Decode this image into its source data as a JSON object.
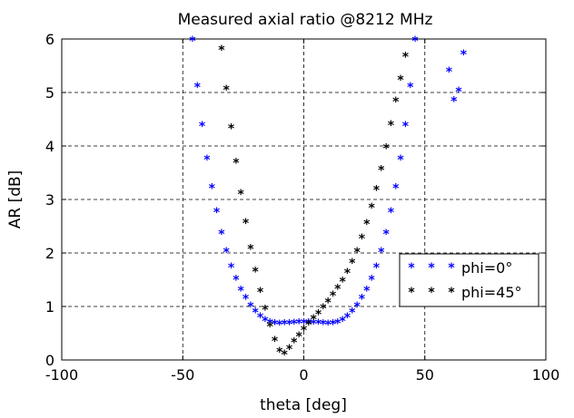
{
  "chart_data": {
    "type": "scatter",
    "title": "Measured axial ratio @8212 MHz",
    "xlabel": "theta [deg]",
    "ylabel": "AR [dB]",
    "xlim": [
      -100,
      100
    ],
    "ylim": [
      0,
      6
    ],
    "xticks": [
      "-100",
      "-50",
      "0",
      "50",
      "100"
    ],
    "yticks": [
      "0",
      "1",
      "2",
      "3",
      "4",
      "5",
      "6"
    ],
    "grid": true,
    "legend_position": "right",
    "series": [
      {
        "name": "phi=0°",
        "color": "#0000ff",
        "marker": "*",
        "points": [
          [
            -46,
            5.97
          ],
          [
            -44,
            5.1
          ],
          [
            -42,
            4.37
          ],
          [
            -40,
            3.75
          ],
          [
            -38,
            3.21
          ],
          [
            -36,
            2.76
          ],
          [
            -34,
            2.36
          ],
          [
            -32,
            2.02
          ],
          [
            -30,
            1.73
          ],
          [
            -28,
            1.5
          ],
          [
            -26,
            1.3
          ],
          [
            -24,
            1.14
          ],
          [
            -22,
            1.0
          ],
          [
            -20,
            0.89
          ],
          [
            -18,
            0.8
          ],
          [
            -16,
            0.73
          ],
          [
            -14,
            0.69
          ],
          [
            -12,
            0.67
          ],
          [
            -10,
            0.66
          ],
          [
            -8,
            0.67
          ],
          [
            -6,
            0.67
          ],
          [
            -4,
            0.68
          ],
          [
            -2,
            0.69
          ],
          [
            0,
            0.69
          ],
          [
            2,
            0.69
          ],
          [
            4,
            0.68
          ],
          [
            6,
            0.68
          ],
          [
            8,
            0.67
          ],
          [
            10,
            0.66
          ],
          [
            12,
            0.67
          ],
          [
            14,
            0.69
          ],
          [
            16,
            0.73
          ],
          [
            18,
            0.8
          ],
          [
            20,
            0.89
          ],
          [
            22,
            1.0
          ],
          [
            24,
            1.14
          ],
          [
            26,
            1.3
          ],
          [
            28,
            1.5
          ],
          [
            30,
            1.73
          ],
          [
            32,
            2.02
          ],
          [
            34,
            2.36
          ],
          [
            36,
            2.76
          ],
          [
            38,
            3.21
          ],
          [
            40,
            3.75
          ],
          [
            42,
            4.37
          ],
          [
            44,
            5.1
          ],
          [
            46,
            5.97
          ],
          [
            60,
            5.39
          ],
          [
            62,
            4.84
          ],
          [
            64,
            5.02
          ],
          [
            66,
            5.71
          ]
        ]
      },
      {
        "name": "phi=45°",
        "color": "#000000",
        "marker": "*",
        "points": [
          [
            -34,
            5.8
          ],
          [
            -32,
            5.05
          ],
          [
            -30,
            4.33
          ],
          [
            -28,
            3.69
          ],
          [
            -26,
            3.1
          ],
          [
            -24,
            2.56
          ],
          [
            -22,
            2.08
          ],
          [
            -20,
            1.65
          ],
          [
            -18,
            1.27
          ],
          [
            -16,
            0.94
          ],
          [
            -14,
            0.63
          ],
          [
            -12,
            0.36
          ],
          [
            -10,
            0.15
          ],
          [
            -8,
            0.1
          ],
          [
            -6,
            0.2
          ],
          [
            -4,
            0.33
          ],
          [
            -2,
            0.44
          ],
          [
            0,
            0.56
          ],
          [
            2,
            0.66
          ],
          [
            4,
            0.76
          ],
          [
            6,
            0.86
          ],
          [
            8,
            0.97
          ],
          [
            10,
            1.08
          ],
          [
            12,
            1.2
          ],
          [
            14,
            1.33
          ],
          [
            16,
            1.47
          ],
          [
            18,
            1.63
          ],
          [
            20,
            1.81
          ],
          [
            22,
            2.02
          ],
          [
            24,
            2.27
          ],
          [
            26,
            2.54
          ],
          [
            28,
            2.85
          ],
          [
            30,
            3.18
          ],
          [
            32,
            3.55
          ],
          [
            34,
            3.96
          ],
          [
            36,
            4.39
          ],
          [
            38,
            4.83
          ],
          [
            40,
            5.24
          ],
          [
            42,
            5.67
          ]
        ]
      }
    ]
  }
}
